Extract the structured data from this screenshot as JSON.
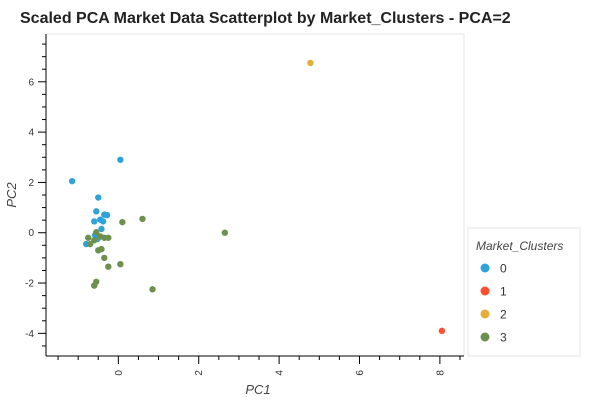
{
  "chart_data": {
    "type": "scatter",
    "title": "Scaled PCA Market Data Scatterplot by Market_Clusters - PCA=2",
    "xlabel": "PC1",
    "ylabel": "PC2",
    "xlim": [
      -1.8,
      8.6
    ],
    "ylim": [
      -4.9,
      7.9
    ],
    "xticks": [
      0,
      2,
      4,
      6,
      8
    ],
    "yticks": [
      -4,
      -2,
      0,
      2,
      4,
      6
    ],
    "grid": false,
    "legend": {
      "title": "Market_Clusters",
      "position": "right"
    },
    "series": [
      {
        "name": "0",
        "color": "#30a2da",
        "points": [
          [
            -1.15,
            2.05
          ],
          [
            0.05,
            2.9
          ],
          [
            -0.5,
            1.4
          ],
          [
            -0.55,
            0.85
          ],
          [
            -0.35,
            0.72
          ],
          [
            -0.28,
            0.7
          ],
          [
            -0.6,
            0.45
          ],
          [
            -0.45,
            0.52
          ],
          [
            -0.38,
            0.45
          ],
          [
            -0.42,
            0.15
          ],
          [
            -0.58,
            -0.1
          ],
          [
            -0.8,
            -0.45
          ],
          [
            -0.52,
            -0.25
          ]
        ]
      },
      {
        "name": "1",
        "color": "#fc4f30",
        "points": [
          [
            8.05,
            -3.9
          ]
        ]
      },
      {
        "name": "2",
        "color": "#e5ae38",
        "points": [
          [
            4.78,
            6.75
          ]
        ]
      },
      {
        "name": "3",
        "color": "#6d904f",
        "points": [
          [
            0.6,
            0.55
          ],
          [
            0.1,
            0.42
          ],
          [
            2.65,
            0.0
          ],
          [
            -0.55,
            0.02
          ],
          [
            -0.75,
            -0.2
          ],
          [
            -0.45,
            -0.15
          ],
          [
            -0.35,
            -0.2
          ],
          [
            -0.25,
            -0.2
          ],
          [
            -0.6,
            -0.3
          ],
          [
            -0.7,
            -0.45
          ],
          [
            -0.5,
            -0.7
          ],
          [
            -0.42,
            -0.65
          ],
          [
            -0.35,
            -1.0
          ],
          [
            0.05,
            -1.25
          ],
          [
            -0.25,
            -1.35
          ],
          [
            -0.55,
            -1.95
          ],
          [
            -0.6,
            -2.1
          ],
          [
            0.85,
            -2.25
          ]
        ]
      }
    ]
  }
}
